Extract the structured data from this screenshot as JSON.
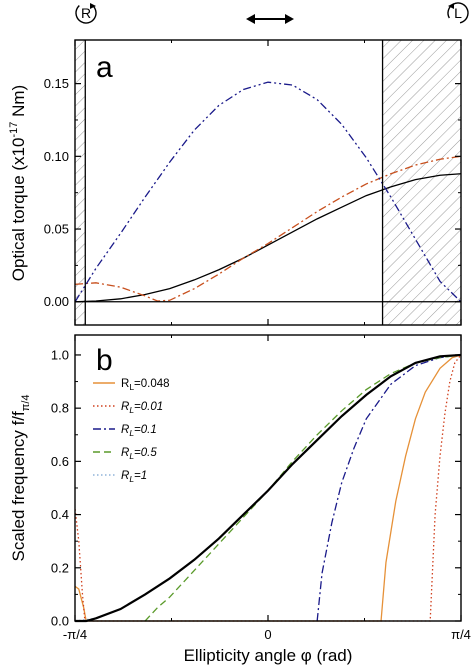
{
  "figure": {
    "top_icons": {
      "left_letter": "R",
      "right_letter": "L",
      "center_icon": "double-arrow-icon"
    }
  },
  "chart_data": [
    {
      "type": "line",
      "panel_label": "a",
      "title": "",
      "ylabel": "Optical torque (x10",
      "ylabel_exp": "-17",
      "ylabel_unit": " Nm)",
      "xlim": [
        -0.7854,
        0.7854
      ],
      "ylim": [
        -0.016,
        0.18
      ],
      "yticks": [
        {
          "v": 0.0,
          "label": "0.00"
        },
        {
          "v": 0.05,
          "label": "0.05"
        },
        {
          "v": 0.1,
          "label": "0.10"
        },
        {
          "v": 0.15,
          "label": "0.15"
        }
      ],
      "hatched_regions": [
        [
          -0.7854,
          -0.7436
        ],
        [
          0.4662,
          0.7854
        ]
      ],
      "vertical_lines": [
        -0.7436,
        0.4662
      ],
      "horizontal_lines": [
        0.0
      ],
      "series": [
        {
          "style": "solid",
          "color": "#000000",
          "x": [
            -0.785,
            -0.7,
            -0.6,
            -0.5,
            -0.4,
            -0.3,
            -0.2,
            -0.1,
            0.0,
            0.1,
            0.2,
            0.3,
            0.4,
            0.5,
            0.6,
            0.7,
            0.785
          ],
          "y": [
            0.0,
            0.0005,
            0.002,
            0.005,
            0.009,
            0.015,
            0.022,
            0.03,
            0.039,
            0.048,
            0.057,
            0.065,
            0.073,
            0.079,
            0.084,
            0.087,
            0.088
          ]
        },
        {
          "style": "dashdot",
          "color": "#c8501e",
          "x": [
            -0.785,
            -0.7,
            -0.6,
            -0.5,
            -0.45,
            -0.4,
            -0.3,
            -0.2,
            -0.1,
            0.0,
            0.1,
            0.2,
            0.3,
            0.4,
            0.5,
            0.6,
            0.7,
            0.785
          ],
          "y": [
            0.012,
            0.013,
            0.01,
            0.004,
            0.0005,
            0.001,
            0.009,
            0.019,
            0.03,
            0.04,
            0.051,
            0.062,
            0.072,
            0.081,
            0.088,
            0.094,
            0.098,
            0.1
          ]
        },
        {
          "style": "dashdotdot",
          "color": "#1a1a8a",
          "x": [
            -0.785,
            -0.7,
            -0.6,
            -0.5,
            -0.4,
            -0.3,
            -0.2,
            -0.1,
            0.0,
            0.1,
            0.2,
            0.3,
            0.4,
            0.5,
            0.6,
            0.7,
            0.785
          ],
          "y": [
            0.0,
            0.023,
            0.047,
            0.072,
            0.096,
            0.118,
            0.135,
            0.146,
            0.151,
            0.149,
            0.139,
            0.122,
            0.099,
            0.072,
            0.043,
            0.014,
            0.0
          ]
        }
      ]
    },
    {
      "type": "line",
      "panel_label": "b",
      "title": "",
      "ylabel": "Scaled frequency f/f",
      "ylabel_sub": "π/4",
      "xlabel": "Ellipticity angle φ (rad)",
      "xlim": [
        -0.7854,
        0.7854
      ],
      "ylim": [
        0.0,
        1.075
      ],
      "xticks": [
        {
          "v": -0.7854,
          "label": "-π/4"
        },
        {
          "v": 0.0,
          "label": "0"
        },
        {
          "v": 0.7854,
          "label": "π/4"
        }
      ],
      "yticks": [
        {
          "v": 0.0,
          "label": "0.0"
        },
        {
          "v": 0.2,
          "label": "0.2"
        },
        {
          "v": 0.4,
          "label": "0.4"
        },
        {
          "v": 0.6,
          "label": "0.6"
        },
        {
          "v": 0.8,
          "label": "0.8"
        },
        {
          "v": 1.0,
          "label": "1.0"
        }
      ],
      "legend_position": "upper-left",
      "series": [
        {
          "name_main": "R",
          "name_sub": "L",
          "name_rest": "=0.048",
          "italic": false,
          "style": "solid",
          "color": "#e69138",
          "x": [
            -0.785,
            -0.77,
            -0.75,
            -0.74,
            0.46,
            0.48,
            0.52,
            0.56,
            0.6,
            0.64,
            0.7,
            0.75,
            0.785
          ],
          "y": [
            0.13,
            0.12,
            0.05,
            0.0,
            0.0,
            0.22,
            0.45,
            0.62,
            0.76,
            0.86,
            0.95,
            0.99,
            1.0
          ]
        },
        {
          "name_main": "R",
          "name_sub": "L",
          "name_rest": "=0.01",
          "italic": true,
          "style": "dotted",
          "color": "#d0401e",
          "x": [
            -0.785,
            -0.77,
            -0.755,
            -0.745,
            0.66,
            0.68,
            0.7,
            0.72,
            0.74,
            0.76,
            0.785
          ],
          "y": [
            0.42,
            0.3,
            0.1,
            0.0,
            0.0,
            0.4,
            0.62,
            0.78,
            0.9,
            0.97,
            1.0
          ]
        },
        {
          "name_main": "R",
          "name_sub": "L",
          "name_rest": "=0.1",
          "italic": true,
          "style": "dashdot",
          "color": "#1a1a8a",
          "x": [
            0.2,
            0.22,
            0.26,
            0.3,
            0.35,
            0.4,
            0.5,
            0.6,
            0.7,
            0.785
          ],
          "y": [
            0.0,
            0.18,
            0.37,
            0.52,
            0.65,
            0.76,
            0.89,
            0.96,
            0.99,
            1.0
          ]
        },
        {
          "name_main": "R",
          "name_sub": "L",
          "name_rest": "=0.5",
          "italic": true,
          "style": "dashed",
          "color": "#5a9a2a",
          "x": [
            -0.5,
            -0.45,
            -0.4,
            -0.3,
            -0.2,
            -0.1,
            0.0,
            0.1,
            0.2,
            0.3,
            0.4,
            0.5,
            0.6,
            0.7,
            0.785
          ],
          "y": [
            0.0,
            0.05,
            0.09,
            0.19,
            0.29,
            0.39,
            0.49,
            0.6,
            0.7,
            0.79,
            0.87,
            0.93,
            0.97,
            0.99,
            1.0
          ]
        },
        {
          "name_main": "R",
          "name_sub": "L",
          "name_rest": "=1",
          "italic": true,
          "style": "dotted",
          "color": "#8fb3d9",
          "x": [
            -0.785,
            -0.7,
            -0.6,
            -0.5,
            -0.4,
            -0.3,
            -0.2,
            -0.1,
            0.0,
            0.1,
            0.2,
            0.3,
            0.4,
            0.5,
            0.6,
            0.7,
            0.785
          ],
          "y": [
            0.0,
            0.01,
            0.045,
            0.1,
            0.16,
            0.23,
            0.31,
            0.4,
            0.49,
            0.59,
            0.68,
            0.77,
            0.85,
            0.92,
            0.97,
            0.995,
            1.0
          ]
        },
        {
          "name_main": "",
          "style": "solid-thick",
          "color": "#000000",
          "x": [
            -0.785,
            -0.74,
            -0.7,
            -0.6,
            -0.5,
            -0.4,
            -0.3,
            -0.2,
            -0.1,
            0.0,
            0.1,
            0.2,
            0.3,
            0.4,
            0.5,
            0.6,
            0.7,
            0.785
          ],
          "y": [
            0.0,
            0.0,
            0.01,
            0.045,
            0.1,
            0.16,
            0.23,
            0.31,
            0.4,
            0.49,
            0.59,
            0.68,
            0.77,
            0.85,
            0.92,
            0.97,
            0.995,
            1.0
          ]
        }
      ]
    }
  ]
}
